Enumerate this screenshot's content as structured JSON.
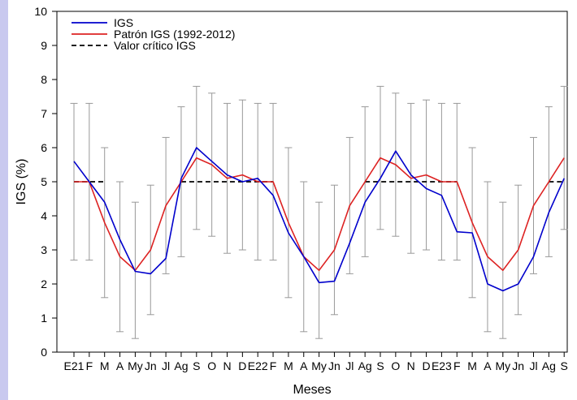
{
  "chart_data": {
    "type": "line",
    "xlabel": "Meses",
    "ylabel": "IGS (%)",
    "ylim": [
      0,
      10
    ],
    "yticks": [
      0,
      1,
      2,
      3,
      4,
      5,
      6,
      7,
      8,
      9,
      10
    ],
    "grid": false,
    "legend_position": "top-left",
    "x_tick_labels": [
      "E21",
      "F",
      "M",
      "A",
      "My",
      "Jn",
      "Jl",
      "Ag",
      "S",
      "O",
      "N",
      "D",
      "E22",
      "F",
      "M",
      "A",
      "My",
      "Jn",
      "Jl",
      "Ag",
      "S",
      "O",
      "N",
      "D",
      "E23",
      "F",
      "M",
      "A",
      "My",
      "Jn",
      "Jl",
      "Ag",
      "S"
    ],
    "series": [
      {
        "name": "IGS",
        "color": "#0000cc",
        "style": "solid",
        "values": [
          5.6,
          5.0,
          4.4,
          3.3,
          2.37,
          2.3,
          2.75,
          5.1,
          6.0,
          5.6,
          5.2,
          5.0,
          5.1,
          4.6,
          3.5,
          2.8,
          2.04,
          2.08,
          3.2,
          4.4,
          5.1,
          5.9,
          5.2,
          4.8,
          4.6,
          3.53,
          3.5,
          2.0,
          1.8,
          2.0,
          2.8,
          4.1,
          5.1
        ]
      },
      {
        "name": "Patrón IGS (1992-2012)",
        "color": "#dd2222",
        "style": "solid",
        "values": [
          5.0,
          5.0,
          3.8,
          2.8,
          2.4,
          3.0,
          4.3,
          5.0,
          5.7,
          5.5,
          5.1,
          5.2,
          5.0,
          5.0,
          3.8,
          2.8,
          2.4,
          3.0,
          4.3,
          5.0,
          5.7,
          5.5,
          5.1,
          5.2,
          5.0,
          5.0,
          3.8,
          2.8,
          2.4,
          3.0,
          4.3,
          5.0,
          5.7
        ]
      },
      {
        "name": "Valor crítico IGS",
        "color": "#000000",
        "style": "dashed",
        "value": 5.0
      }
    ],
    "error_bars": {
      "color": "#999999",
      "low": [
        2.7,
        2.7,
        1.6,
        0.6,
        0.4,
        1.1,
        2.3,
        2.8,
        3.6,
        3.4,
        2.9,
        3.0,
        2.7,
        2.7,
        1.6,
        0.6,
        0.4,
        1.1,
        2.3,
        2.8,
        3.6,
        3.4,
        2.9,
        3.0,
        2.7,
        2.7,
        1.6,
        0.6,
        0.4,
        1.1,
        2.3,
        2.8,
        3.6
      ],
      "high": [
        7.3,
        7.3,
        6.0,
        5.0,
        4.4,
        4.9,
        6.3,
        7.2,
        7.8,
        7.6,
        7.3,
        7.4,
        7.3,
        7.3,
        6.0,
        5.0,
        4.4,
        4.9,
        6.3,
        7.2,
        7.8,
        7.6,
        7.3,
        7.4,
        7.3,
        7.3,
        6.0,
        5.0,
        4.4,
        4.9,
        6.3,
        7.2,
        7.8
      ]
    },
    "critical_segments": [
      [
        0,
        2
      ],
      [
        7,
        13
      ],
      [
        19,
        25
      ],
      [
        31,
        32
      ]
    ]
  }
}
